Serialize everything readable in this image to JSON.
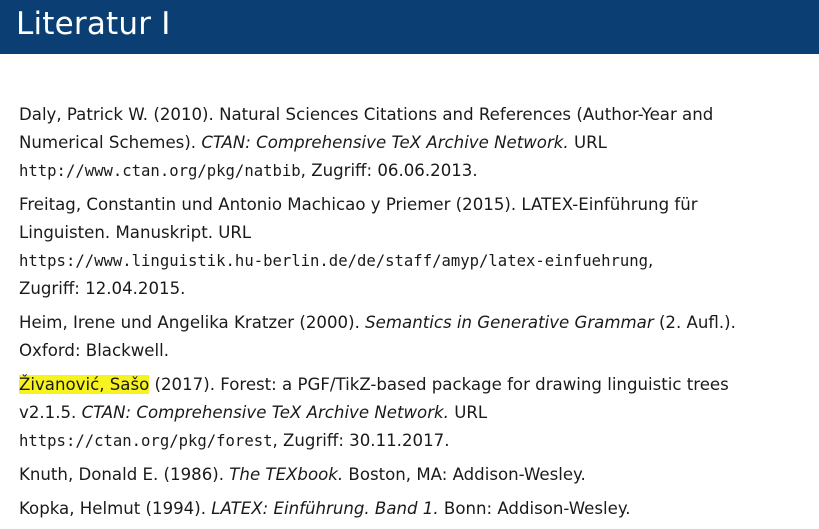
{
  "title": "Literatur I",
  "refs": [
    {
      "l1": "Daly, Patrick W. (2010). Natural Sciences Citations and References (Author-Year and",
      "l2a": "Numerical Schemes). ",
      "l2b": "CTAN: Comprehensive TeX Archive Network.",
      "l2c": " URL",
      "url": "http://www.ctan.org/pkg/natbib",
      "l3c": ", Zugriff: 06.06.2013."
    },
    {
      "l1": "Freitag, Constantin und Antonio Machicao y Priemer (2015). LATEX-Einführung für",
      "l2": "Linguisten. Manuskript. URL",
      "url": "https://www.linguistik.hu-berlin.de/de/staff/amyp/latex-einfuehrung",
      "comma": ",",
      "l4": "Zugriff: 12.04.2015."
    },
    {
      "l1a": "Heim, Irene und Angelika Kratzer (2000). ",
      "l1b": "Semantics in Generative Grammar",
      "l1c": " (2. Aufl.).",
      "l2": "Oxford: Blackwell."
    },
    {
      "author": "Živanović, Sašo",
      "l1": " (2017). Forest: a PGF/TikZ-based package for drawing linguistic trees",
      "l2a": "v2.1.5. ",
      "l2b": "CTAN: Comprehensive TeX Archive Network.",
      "l2c": " URL",
      "url": "https://ctan.org/pkg/forest",
      "l3c": ", Zugriff: 30.11.2017."
    },
    {
      "l1a": "Knuth, Donald E. (1986). ",
      "l1b": "The TEXbook.",
      "l1c": " Boston, MA: Addison-Wesley."
    },
    {
      "l1a": "Kopka, Helmut (1994). ",
      "l1b": "LATEX: Einführung. Band 1.",
      "l1c": " Bonn: Addison-Wesley."
    }
  ],
  "colors": {
    "title_bar": "#0b3f73",
    "highlight": "#f7f31f"
  }
}
